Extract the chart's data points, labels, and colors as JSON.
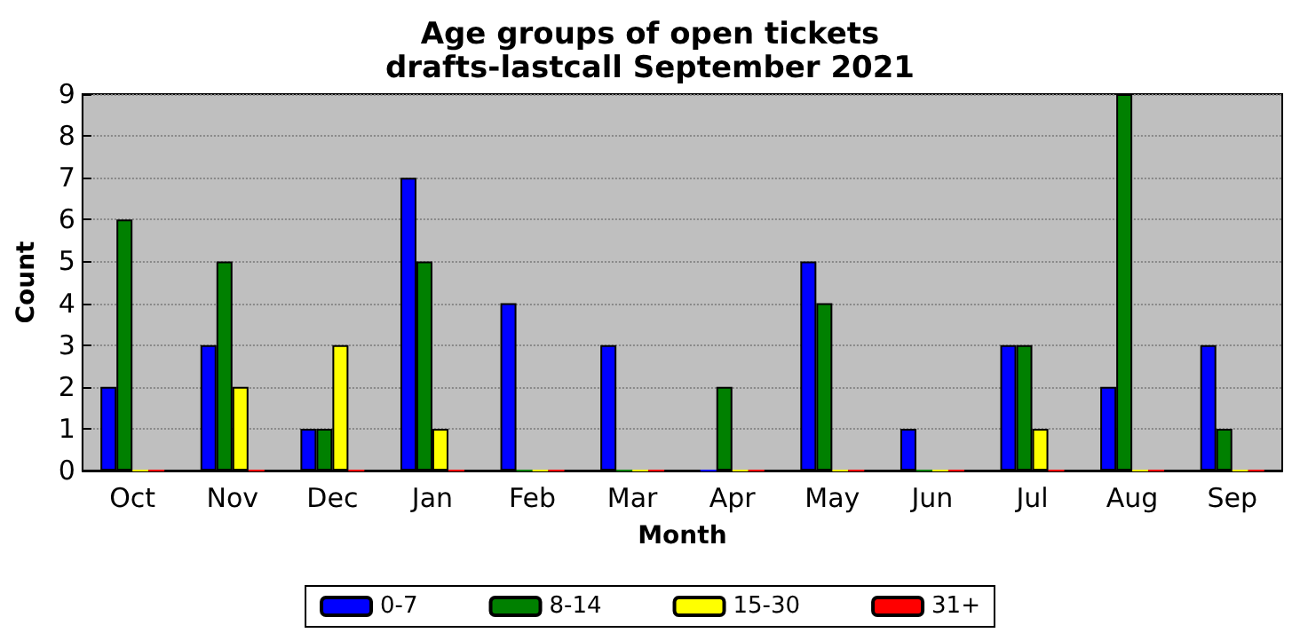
{
  "chart_data": {
    "type": "bar",
    "title": "Age groups of open tickets",
    "subtitle": "drafts-lastcall September 2021",
    "xlabel": "Month",
    "ylabel": "Count",
    "categories": [
      "Oct",
      "Nov",
      "Dec",
      "Jan",
      "Feb",
      "Mar",
      "Apr",
      "May",
      "Jun",
      "Jul",
      "Aug",
      "Sep"
    ],
    "series": [
      {
        "name": "0-7",
        "color": "#0000ff",
        "values": [
          2,
          3,
          1,
          7,
          4,
          3,
          0,
          5,
          1,
          3,
          2,
          3
        ]
      },
      {
        "name": "8-14",
        "color": "#008000",
        "values": [
          6,
          5,
          1,
          5,
          0,
          0,
          2,
          4,
          0,
          3,
          9,
          1
        ]
      },
      {
        "name": "15-30",
        "color": "#ffff00",
        "values": [
          0,
          2,
          3,
          1,
          0,
          0,
          0,
          0,
          0,
          1,
          0,
          0
        ]
      },
      {
        "name": "31+",
        "color": "#ff0000",
        "values": [
          0,
          0,
          0,
          0,
          0,
          0,
          0,
          0,
          0,
          0,
          0,
          0
        ]
      }
    ],
    "ylim": [
      0,
      9
    ],
    "yticks": [
      0,
      1,
      2,
      3,
      4,
      5,
      6,
      7,
      8,
      9
    ],
    "grid": "y",
    "legend": "bottom"
  }
}
